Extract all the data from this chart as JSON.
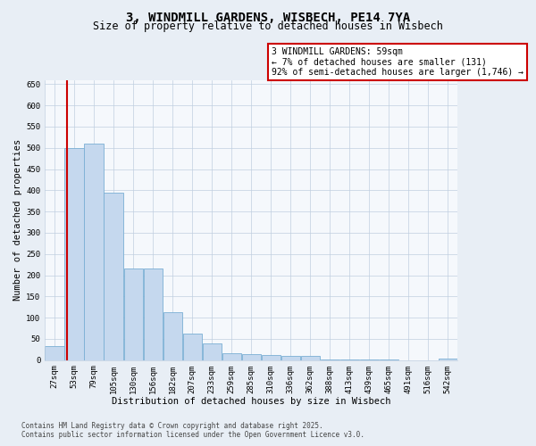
{
  "title_line1": "3, WINDMILL GARDENS, WISBECH, PE14 7YA",
  "title_line2": "Size of property relative to detached houses in Wisbech",
  "xlabel": "Distribution of detached houses by size in Wisbech",
  "ylabel": "Number of detached properties",
  "footer_line1": "Contains HM Land Registry data © Crown copyright and database right 2025.",
  "footer_line2": "Contains public sector information licensed under the Open Government Licence v3.0.",
  "categories": [
    "27sqm",
    "53sqm",
    "79sqm",
    "105sqm",
    "130sqm",
    "156sqm",
    "182sqm",
    "207sqm",
    "233sqm",
    "259sqm",
    "285sqm",
    "310sqm",
    "336sqm",
    "362sqm",
    "388sqm",
    "413sqm",
    "439sqm",
    "465sqm",
    "491sqm",
    "516sqm",
    "542sqm"
  ],
  "values": [
    32,
    500,
    510,
    395,
    215,
    215,
    112,
    62,
    40,
    17,
    15,
    12,
    10,
    10,
    2,
    2,
    1,
    1,
    0,
    0,
    3
  ],
  "bar_color": "#c5d8ee",
  "bar_edge_color": "#7bafd4",
  "property_line_color": "#cc0000",
  "annotation_text": "3 WINDMILL GARDENS: 59sqm\n← 7% of detached houses are smaller (131)\n92% of semi-detached houses are larger (1,746) →",
  "annotation_box_color": "white",
  "annotation_box_edge_color": "#cc0000",
  "ylim": [
    0,
    660
  ],
  "yticks": [
    0,
    50,
    100,
    150,
    200,
    250,
    300,
    350,
    400,
    450,
    500,
    550,
    600,
    650
  ],
  "bg_color": "#e8eef5",
  "plot_bg_color": "#f5f8fc",
  "grid_color": "#c0cfe0",
  "title_fontsize": 10,
  "subtitle_fontsize": 8.5,
  "tick_fontsize": 6.5,
  "label_fontsize": 7.5,
  "footer_fontsize": 5.5
}
